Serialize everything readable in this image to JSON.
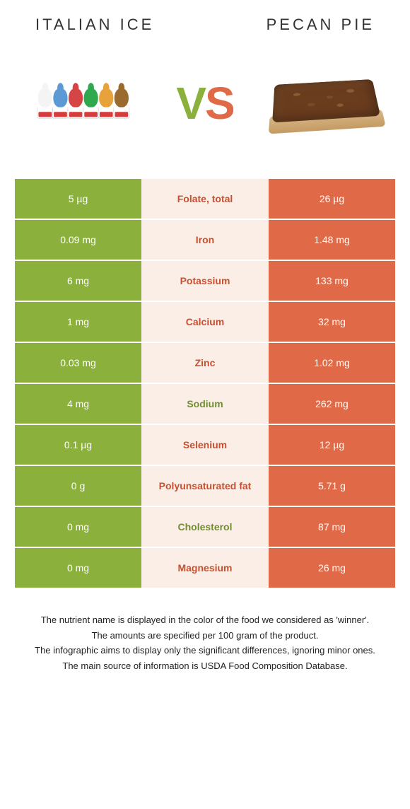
{
  "header": {
    "left": "Italian ice",
    "right": "Pecan pie"
  },
  "vs": {
    "v": "V",
    "s": "S"
  },
  "colors": {
    "left": "#8bb03b",
    "right": "#e06a47",
    "mid_bg": "#fbeee6",
    "label_green": "#6f8f2f",
    "label_orange": "#c94f2f"
  },
  "cone_colors": [
    "#f4f4f4",
    "#5b9ad5",
    "#d64545",
    "#2fa84f",
    "#e8a23b",
    "#9a6a2f"
  ],
  "rows": [
    {
      "left": "5 µg",
      "label": "Folate, total",
      "right": "26 µg",
      "winner": "right"
    },
    {
      "left": "0.09 mg",
      "label": "Iron",
      "right": "1.48 mg",
      "winner": "right"
    },
    {
      "left": "6 mg",
      "label": "Potassium",
      "right": "133 mg",
      "winner": "right"
    },
    {
      "left": "1 mg",
      "label": "Calcium",
      "right": "32 mg",
      "winner": "right"
    },
    {
      "left": "0.03 mg",
      "label": "Zinc",
      "right": "1.02 mg",
      "winner": "right"
    },
    {
      "left": "4 mg",
      "label": "Sodium",
      "right": "262 mg",
      "winner": "left"
    },
    {
      "left": "0.1 µg",
      "label": "Selenium",
      "right": "12 µg",
      "winner": "right"
    },
    {
      "left": "0 g",
      "label": "Polyunsaturated fat",
      "right": "5.71 g",
      "winner": "right"
    },
    {
      "left": "0 mg",
      "label": "Cholesterol",
      "right": "87 mg",
      "winner": "left"
    },
    {
      "left": "0 mg",
      "label": "Magnesium",
      "right": "26 mg",
      "winner": "right"
    }
  ],
  "footer": [
    "The nutrient name is displayed in the color of the food we considered as 'winner'.",
    "The amounts are specified per 100 gram of the product.",
    "The infographic aims to display only the significant differences, ignoring minor ones.",
    "The main source of information is USDA Food Composition Database."
  ]
}
